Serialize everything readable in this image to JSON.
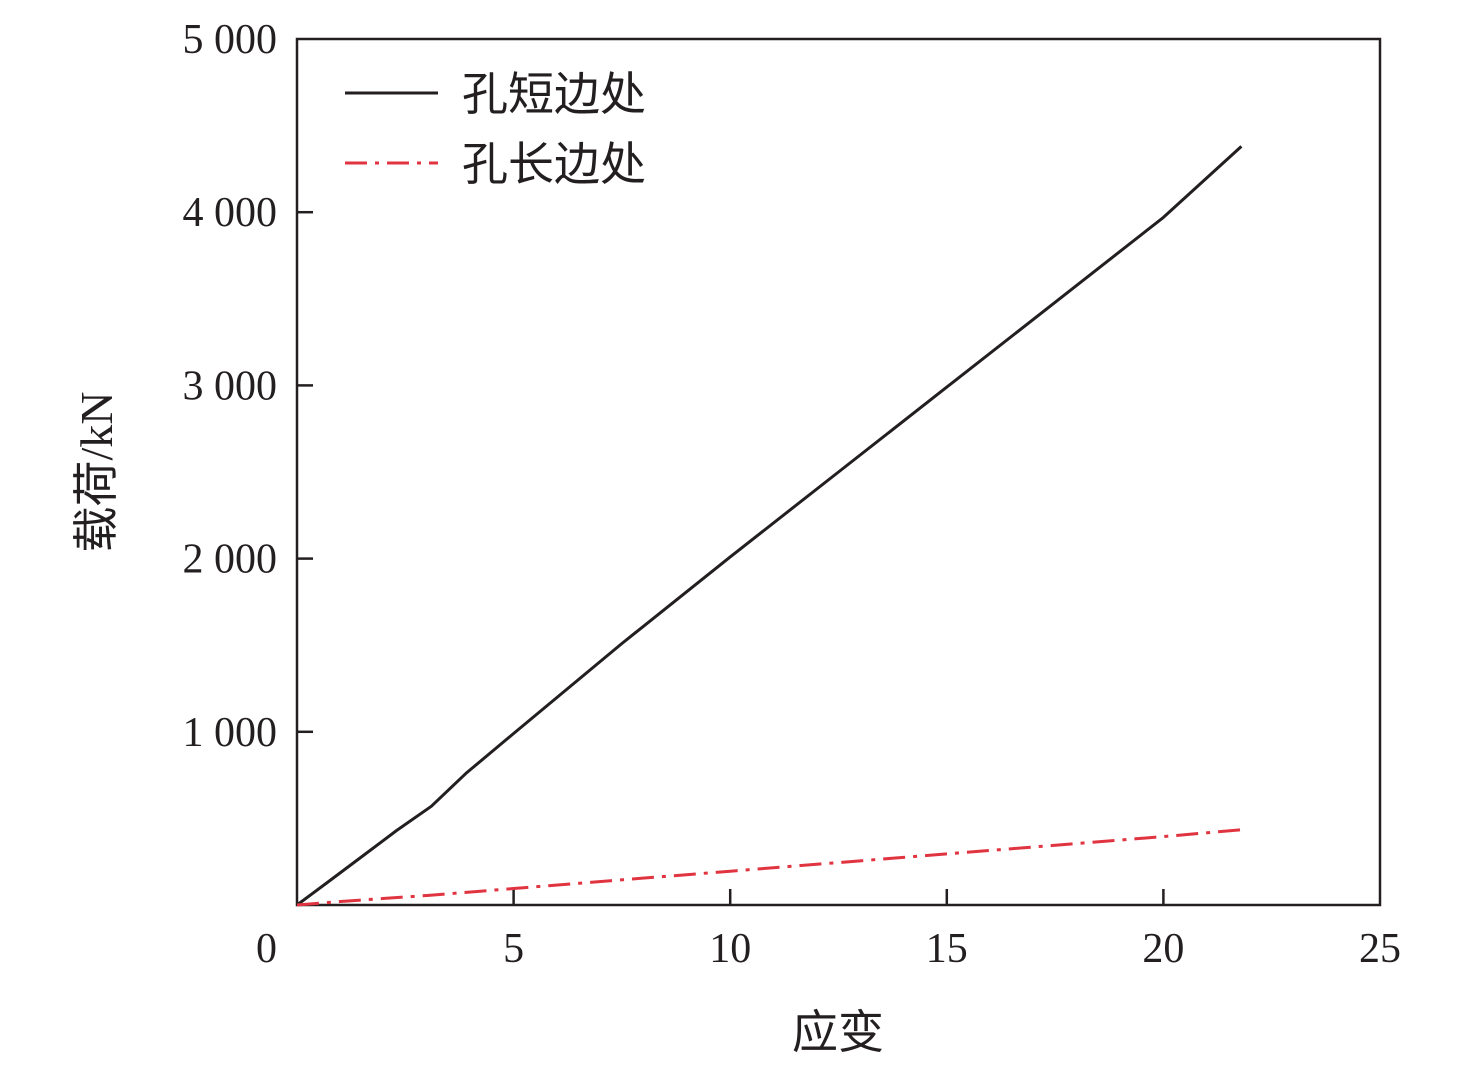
{
  "chart_data": {
    "type": "line",
    "title": "",
    "xlabel": "应变",
    "ylabel": "载荷/kN",
    "xlim": [
      0,
      25
    ],
    "ylim": [
      0,
      5000
    ],
    "xticks": [
      0,
      5,
      10,
      15,
      20,
      25
    ],
    "xtick_labels": [
      "0",
      "5",
      "10",
      "15",
      "20",
      "25"
    ],
    "yticks": [
      1000,
      2000,
      3000,
      4000,
      5000
    ],
    "ytick_labels": [
      "1 000",
      "2 000",
      "3 000",
      "4 000",
      "5 000"
    ],
    "grid": false,
    "legend_position": "top-left",
    "series": [
      {
        "name": "孔短边处",
        "color": "#231f20",
        "dash": "solid",
        "x": [
          0,
          0.7,
          1.5,
          2.3,
          3.1,
          3.9,
          5.0,
          7.5,
          10.0,
          12.5,
          15.0,
          17.5,
          20.0,
          21.8
        ],
        "y": [
          0,
          130,
          280,
          430,
          570,
          760,
          990,
          1510,
          2010,
          2500,
          2990,
          3480,
          3970,
          4380
        ]
      },
      {
        "name": "孔长边处",
        "color": "#e03440",
        "dash": "dashdot",
        "x": [
          0,
          1.0,
          3.0,
          5.0,
          10.0,
          15.0,
          20.0,
          21.8
        ],
        "y": [
          0,
          20,
          55,
          95,
          195,
          295,
          395,
          435
        ]
      }
    ]
  }
}
